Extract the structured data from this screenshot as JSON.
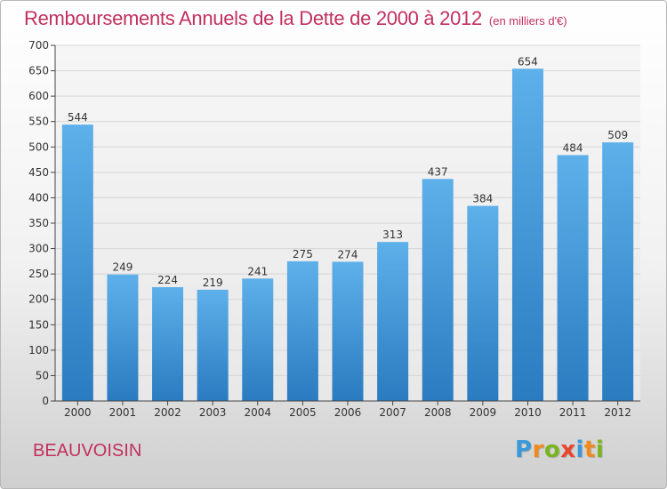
{
  "title": "Remboursements Annuels de la Dette de 2000 à 2012",
  "unit_label": "(en milliers d'€)",
  "commune": "BEAUVOISIN",
  "logo": {
    "text": "Proxiti",
    "letters": [
      "P",
      "r",
      "o",
      "x",
      "i",
      "t",
      "i"
    ],
    "letter_colors": [
      "#3a9ad9",
      "#f08a1c",
      "#7ab51d",
      "#e8442e",
      "#3a9ad9",
      "#f08a1c",
      "#7ab51d"
    ]
  },
  "colors": {
    "title": "#c2305f",
    "bar_top": "#5eb0ea",
    "bar_bottom": "#2a7bc0",
    "grid": "#d6d6d6",
    "axis": "#444444"
  },
  "chart_data": {
    "type": "bar",
    "title": "Remboursements Annuels de la Dette de 2000 à 2012",
    "xlabel": "",
    "ylabel": "",
    "categories": [
      "2000",
      "2001",
      "2002",
      "2003",
      "2004",
      "2005",
      "2006",
      "2007",
      "2008",
      "2009",
      "2010",
      "2011",
      "2012"
    ],
    "values": [
      544,
      249,
      224,
      219,
      241,
      275,
      274,
      313,
      437,
      384,
      654,
      484,
      509
    ],
    "ylim": [
      0,
      700
    ],
    "yticks": [
      0,
      50,
      100,
      150,
      200,
      250,
      300,
      350,
      400,
      450,
      500,
      550,
      600,
      650,
      700
    ],
    "grid": true,
    "data_labels": true
  }
}
